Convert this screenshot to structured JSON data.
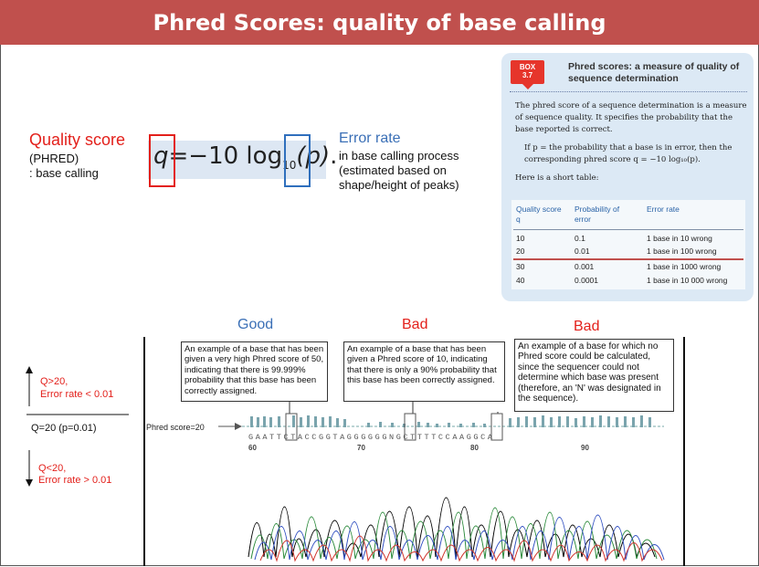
{
  "title": "Phred Scores: quality of base calling",
  "quality_score": {
    "label": "Quality score",
    "sub1": "(PHRED)",
    "sub2": ": base calling"
  },
  "formula": {
    "q": "q",
    "equals": "=−10 log",
    "sub": "10",
    "p": "(p)",
    "end": "."
  },
  "error_rate": {
    "label": "Error rate",
    "line1": "in base calling process",
    "line2": "(estimated based on",
    "line3": "shape/height of peaks)"
  },
  "box": {
    "badge_line1": "BOX",
    "badge_line2": "3.7",
    "title": "Phred scores: a measure of quality of sequence determination",
    "para1": "The phred score of a sequence determination is a measure of sequence quality. It specifies the probability that the base reported is correct.",
    "para2": "If p = the probability that a base is in error, then the corresponding phred score q = −10 log₁₀(p).",
    "para3": "Here is a short table:",
    "headers": [
      "Quality score q",
      "Probability of error",
      "Error rate"
    ],
    "rows": [
      [
        "10",
        "0.1",
        "1 base in 10 wrong"
      ],
      [
        "20",
        "0.01",
        "1 base in 100 wrong"
      ],
      [
        "30",
        "0.001",
        "1 base in 1000 wrong"
      ],
      [
        "40",
        "0.0001",
        "1 base in 10 000 wrong"
      ]
    ]
  },
  "labels": {
    "good": "Good",
    "bad1": "Bad",
    "bad2": "Bad"
  },
  "callouts": {
    "good": "An example of a base that has been given a very high Phred score of 50, indicating that there is 99.999% probability that this base has been correctly assigned.",
    "bad1": "An example of a base that has been given a Phred score of 10, indicating that there is only a 90% probability that this base has been correctly assigned.",
    "bad2": "An example of a base for which no Phred score could be calculated, since the sequencer could not determine which base was present (therefore, an 'N' was designated in the sequence)."
  },
  "chromatogram": {
    "phred_label": "Phred score=20",
    "sequence": "GAATTCTACCGGTAGGGGGGNGCTTTTCCAAGGCA",
    "positions": [
      "60",
      "70",
      "80",
      "90"
    ]
  },
  "scale": {
    "above1": "Q>20,",
    "above2": "Error rate < 0.01",
    "mid": "Q=20 (p=0.01)",
    "below1": "Q<20,",
    "below2": "Error rate > 0.01"
  }
}
